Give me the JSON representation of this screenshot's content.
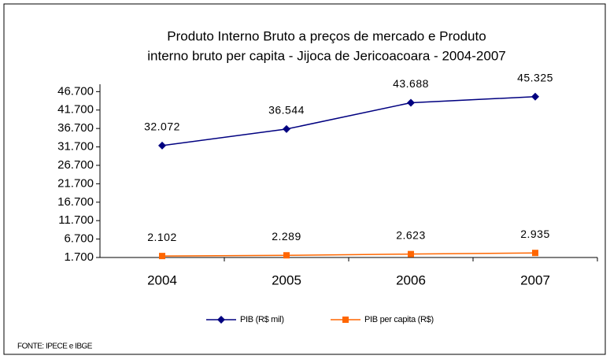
{
  "chart_data": {
    "type": "line",
    "title": [
      "Produto Interno Bruto a preços de mercado  e   Produto",
      "interno bruto per capita - Jijoca de Jericoacoara - 2004-2007"
    ],
    "categories": [
      "2004",
      "2005",
      "2006",
      "2007"
    ],
    "series": [
      {
        "name": "PIB (R$ mil)",
        "color": "#000080",
        "marker": "diamond",
        "values": [
          32072,
          36544,
          43688,
          45325
        ],
        "value_labels": [
          "32.072",
          "36.544",
          "43.688",
          "45.325"
        ]
      },
      {
        "name": "PIB per capita (R$)",
        "color": "#ff6600",
        "marker": "square",
        "values": [
          2102,
          2289,
          2623,
          2935
        ],
        "value_labels": [
          "2.102",
          "2.289",
          "2.623",
          "2.935"
        ]
      }
    ],
    "ylim": [
      1700,
      48700
    ],
    "yticks": [
      {
        "value": 1700,
        "label": "1.700"
      },
      {
        "value": 6700,
        "label": "6.700"
      },
      {
        "value": 11700,
        "label": "11.700"
      },
      {
        "value": 16700,
        "label": "16.700"
      },
      {
        "value": 21700,
        "label": "21.700"
      },
      {
        "value": 26700,
        "label": "26.700"
      },
      {
        "value": 31700,
        "label": "31.700"
      },
      {
        "value": 36700,
        "label": "36.700"
      },
      {
        "value": 41700,
        "label": "41.700"
      },
      {
        "value": 46700,
        "label": "46.700"
      }
    ],
    "grid": false,
    "legend": "bottom",
    "source": "FONTE: IPECE e IBGE"
  }
}
